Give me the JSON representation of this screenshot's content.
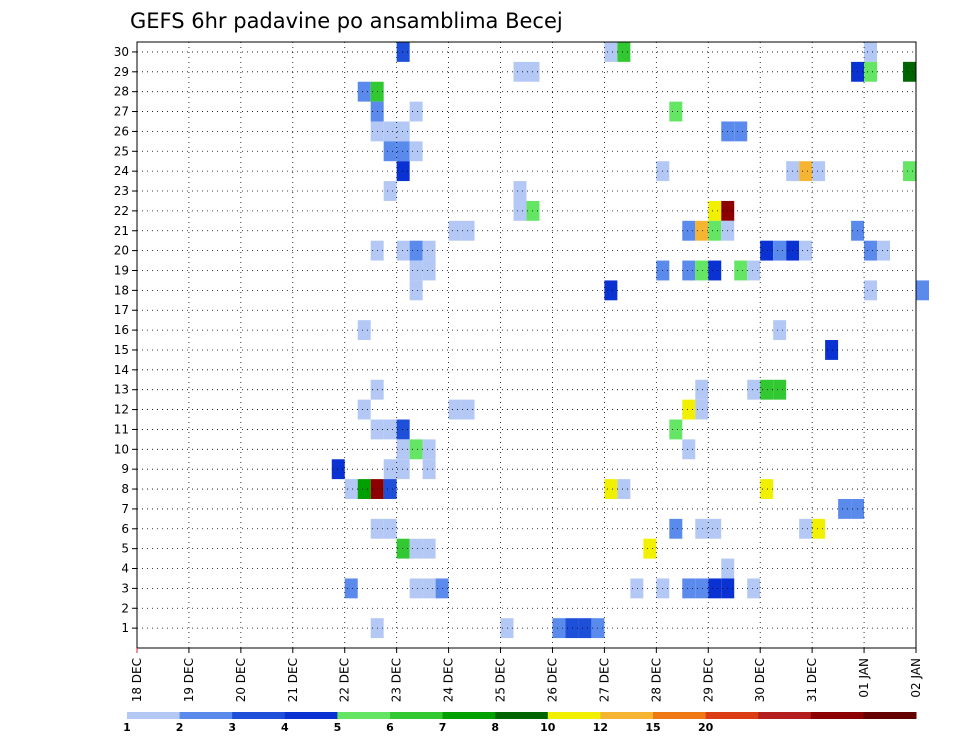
{
  "chart_data": {
    "type": "heatmap",
    "title": "GEFS 6hr padavine po ansamblima Becej",
    "xlabel": "",
    "ylabel": "",
    "x_tick_labels": [
      "18 DEC",
      "19 DEC",
      "20 DEC",
      "21 DEC",
      "22 DEC",
      "23 DEC",
      "24 DEC",
      "25 DEC",
      "26 DEC",
      "27 DEC",
      "28 DEC",
      "29 DEC",
      "30 DEC",
      "31 DEC",
      "01 JAN",
      "02 JAN"
    ],
    "x_range_days": [
      0,
      15
    ],
    "steps_per_day": 4,
    "y_tick_labels": [
      "1",
      "2",
      "3",
      "4",
      "5",
      "6",
      "7",
      "8",
      "9",
      "10",
      "11",
      "12",
      "13",
      "14",
      "15",
      "16",
      "17",
      "18",
      "19",
      "20",
      "21",
      "22",
      "23",
      "24",
      "25",
      "26",
      "27",
      "28",
      "29",
      "30"
    ],
    "grid": true,
    "colorbar": {
      "labels": [
        "1",
        "2",
        "3",
        "4",
        "5",
        "6",
        "7",
        "8",
        "10",
        "12",
        "15",
        "20"
      ],
      "colors": [
        "#b4c8f5",
        "#5a8aeb",
        "#1e4fd8",
        "#0a32d2",
        "#64e664",
        "#32c832",
        "#00a000",
        "#006400",
        "#f0f000",
        "#f5b432",
        "#f07814",
        "#dc3c14",
        "#b41e1e",
        "#8c0000",
        "#640000"
      ]
    },
    "cells": [
      {
        "day": 5.0,
        "member": 30,
        "level": 3
      },
      {
        "day": 9.0,
        "member": 30,
        "level": 1
      },
      {
        "day": 9.25,
        "member": 30,
        "level": 6
      },
      {
        "day": 14.0,
        "member": 30,
        "level": 1
      },
      {
        "day": 7.25,
        "member": 29,
        "level": 1
      },
      {
        "day": 7.5,
        "member": 29,
        "level": 1
      },
      {
        "day": 13.75,
        "member": 29,
        "level": 4
      },
      {
        "day": 14.0,
        "member": 29,
        "level": 5
      },
      {
        "day": 14.75,
        "member": 29,
        "level": 8
      },
      {
        "day": 4.25,
        "member": 28,
        "level": 2
      },
      {
        "day": 4.5,
        "member": 28,
        "level": 6
      },
      {
        "day": 4.5,
        "member": 27,
        "level": 2
      },
      {
        "day": 5.25,
        "member": 27,
        "level": 1
      },
      {
        "day": 10.25,
        "member": 27,
        "level": 5
      },
      {
        "day": 4.5,
        "member": 26,
        "level": 1
      },
      {
        "day": 4.75,
        "member": 26,
        "level": 1
      },
      {
        "day": 5.0,
        "member": 26,
        "level": 1
      },
      {
        "day": 11.25,
        "member": 26,
        "level": 2
      },
      {
        "day": 11.5,
        "member": 26,
        "level": 2
      },
      {
        "day": 4.75,
        "member": 25,
        "level": 2
      },
      {
        "day": 5.0,
        "member": 25,
        "level": 2
      },
      {
        "day": 5.25,
        "member": 25,
        "level": 1
      },
      {
        "day": 5.0,
        "member": 24,
        "level": 4
      },
      {
        "day": 10.0,
        "member": 24,
        "level": 1
      },
      {
        "day": 12.5,
        "member": 24,
        "level": 1
      },
      {
        "day": 12.75,
        "member": 24,
        "level": 10
      },
      {
        "day": 13.0,
        "member": 24,
        "level": 1
      },
      {
        "day": 14.75,
        "member": 24,
        "level": 5
      },
      {
        "day": 4.75,
        "member": 23,
        "level": 1
      },
      {
        "day": 7.25,
        "member": 23,
        "level": 1
      },
      {
        "day": 7.25,
        "member": 22,
        "level": 1
      },
      {
        "day": 7.5,
        "member": 22,
        "level": 5
      },
      {
        "day": 11.0,
        "member": 22,
        "level": 9
      },
      {
        "day": 11.25,
        "member": 22,
        "level": 14
      },
      {
        "day": 6.0,
        "member": 21,
        "level": 1
      },
      {
        "day": 6.25,
        "member": 21,
        "level": 1
      },
      {
        "day": 10.5,
        "member": 21,
        "level": 2
      },
      {
        "day": 10.75,
        "member": 21,
        "level": 10
      },
      {
        "day": 11.0,
        "member": 21,
        "level": 5
      },
      {
        "day": 11.25,
        "member": 21,
        "level": 1
      },
      {
        "day": 13.75,
        "member": 21,
        "level": 2
      },
      {
        "day": 4.5,
        "member": 20,
        "level": 1
      },
      {
        "day": 5.0,
        "member": 20,
        "level": 1
      },
      {
        "day": 5.25,
        "member": 20,
        "level": 2
      },
      {
        "day": 5.5,
        "member": 20,
        "level": 1
      },
      {
        "day": 12.0,
        "member": 20,
        "level": 4
      },
      {
        "day": 12.25,
        "member": 20,
        "level": 2
      },
      {
        "day": 12.5,
        "member": 20,
        "level": 4
      },
      {
        "day": 12.75,
        "member": 20,
        "level": 1
      },
      {
        "day": 14.0,
        "member": 20,
        "level": 2
      },
      {
        "day": 14.25,
        "member": 20,
        "level": 1
      },
      {
        "day": 5.25,
        "member": 19,
        "level": 1
      },
      {
        "day": 5.5,
        "member": 19,
        "level": 1
      },
      {
        "day": 10.0,
        "member": 19,
        "level": 2
      },
      {
        "day": 10.5,
        "member": 19,
        "level": 2
      },
      {
        "day": 10.75,
        "member": 19,
        "level": 5
      },
      {
        "day": 11.0,
        "member": 19,
        "level": 4
      },
      {
        "day": 11.5,
        "member": 19,
        "level": 5
      },
      {
        "day": 11.75,
        "member": 19,
        "level": 1
      },
      {
        "day": 5.25,
        "member": 18,
        "level": 1
      },
      {
        "day": 9.0,
        "member": 18,
        "level": 4
      },
      {
        "day": 14.0,
        "member": 18,
        "level": 1
      },
      {
        "day": 15.0,
        "member": 18,
        "level": 2
      },
      {
        "day": 4.25,
        "member": 16,
        "level": 1
      },
      {
        "day": 12.25,
        "member": 16,
        "level": 1
      },
      {
        "day": 13.25,
        "member": 15,
        "level": 4
      },
      {
        "day": 4.5,
        "member": 13,
        "level": 1
      },
      {
        "day": 10.75,
        "member": 13,
        "level": 1
      },
      {
        "day": 11.75,
        "member": 13,
        "level": 1
      },
      {
        "day": 12.0,
        "member": 13,
        "level": 6
      },
      {
        "day": 12.25,
        "member": 13,
        "level": 6
      },
      {
        "day": 4.25,
        "member": 12,
        "level": 1
      },
      {
        "day": 6.0,
        "member": 12,
        "level": 1
      },
      {
        "day": 6.25,
        "member": 12,
        "level": 1
      },
      {
        "day": 10.5,
        "member": 12,
        "level": 9
      },
      {
        "day": 10.75,
        "member": 12,
        "level": 1
      },
      {
        "day": 4.5,
        "member": 11,
        "level": 1
      },
      {
        "day": 4.75,
        "member": 11,
        "level": 1
      },
      {
        "day": 5.0,
        "member": 11,
        "level": 3
      },
      {
        "day": 10.25,
        "member": 11,
        "level": 5
      },
      {
        "day": 5.0,
        "member": 10,
        "level": 1
      },
      {
        "day": 5.25,
        "member": 10,
        "level": 5
      },
      {
        "day": 5.5,
        "member": 10,
        "level": 1
      },
      {
        "day": 10.5,
        "member": 10,
        "level": 1
      },
      {
        "day": 3.75,
        "member": 9,
        "level": 4
      },
      {
        "day": 4.75,
        "member": 9,
        "level": 1
      },
      {
        "day": 5.0,
        "member": 9,
        "level": 1
      },
      {
        "day": 5.5,
        "member": 9,
        "level": 1
      },
      {
        "day": 4.0,
        "member": 8,
        "level": 1
      },
      {
        "day": 4.25,
        "member": 8,
        "level": 7
      },
      {
        "day": 4.5,
        "member": 8,
        "level": 14
      },
      {
        "day": 4.75,
        "member": 8,
        "level": 3
      },
      {
        "day": 9.0,
        "member": 8,
        "level": 9
      },
      {
        "day": 9.25,
        "member": 8,
        "level": 1
      },
      {
        "day": 12.0,
        "member": 8,
        "level": 9
      },
      {
        "day": 13.5,
        "member": 7,
        "level": 2
      },
      {
        "day": 13.75,
        "member": 7,
        "level": 2
      },
      {
        "day": 4.5,
        "member": 6,
        "level": 1
      },
      {
        "day": 4.75,
        "member": 6,
        "level": 1
      },
      {
        "day": 10.25,
        "member": 6,
        "level": 2
      },
      {
        "day": 10.75,
        "member": 6,
        "level": 1
      },
      {
        "day": 11.0,
        "member": 6,
        "level": 1
      },
      {
        "day": 12.75,
        "member": 6,
        "level": 1
      },
      {
        "day": 13.0,
        "member": 6,
        "level": 9
      },
      {
        "day": 5.0,
        "member": 5,
        "level": 6
      },
      {
        "day": 5.25,
        "member": 5,
        "level": 1
      },
      {
        "day": 5.5,
        "member": 5,
        "level": 1
      },
      {
        "day": 9.75,
        "member": 5,
        "level": 9
      },
      {
        "day": 11.25,
        "member": 4,
        "level": 1
      },
      {
        "day": 4.0,
        "member": 3,
        "level": 2
      },
      {
        "day": 5.25,
        "member": 3,
        "level": 1
      },
      {
        "day": 5.5,
        "member": 3,
        "level": 1
      },
      {
        "day": 5.75,
        "member": 3,
        "level": 2
      },
      {
        "day": 9.5,
        "member": 3,
        "level": 1
      },
      {
        "day": 10.0,
        "member": 3,
        "level": 1
      },
      {
        "day": 10.5,
        "member": 3,
        "level": 2
      },
      {
        "day": 10.75,
        "member": 3,
        "level": 2
      },
      {
        "day": 11.0,
        "member": 3,
        "level": 4
      },
      {
        "day": 11.25,
        "member": 3,
        "level": 4
      },
      {
        "day": 11.75,
        "member": 3,
        "level": 1
      },
      {
        "day": 4.5,
        "member": 1,
        "level": 1
      },
      {
        "day": 7.0,
        "member": 1,
        "level": 1
      },
      {
        "day": 8.0,
        "member": 1,
        "level": 2
      },
      {
        "day": 8.25,
        "member": 1,
        "level": 3
      },
      {
        "day": 8.5,
        "member": 1,
        "level": 3
      },
      {
        "day": 8.75,
        "member": 1,
        "level": 2
      }
    ]
  }
}
